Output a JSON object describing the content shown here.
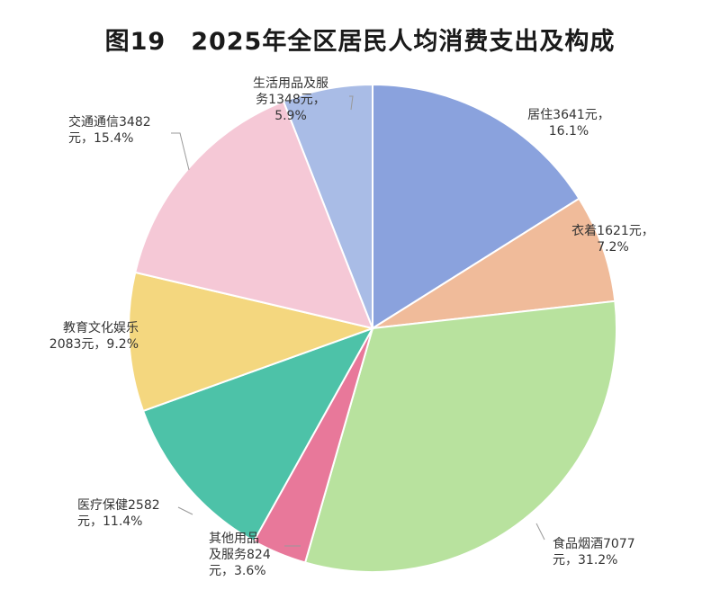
{
  "chart_data": {
    "type": "pie",
    "title": "图19　2025年全区居民人均消费支出及构成",
    "slices": [
      {
        "name": "居住",
        "value": 3641,
        "percent": 16.1,
        "color": "#8aa2dd",
        "label_lines": [
          "居住3641元，",
          "16.1%"
        ]
      },
      {
        "name": "衣着",
        "value": 1621,
        "percent": 7.2,
        "color": "#f0bb9a",
        "label_lines": [
          "衣着1621元，",
          "7.2%"
        ]
      },
      {
        "name": "食品烟酒",
        "value": 7077,
        "percent": 31.2,
        "color": "#b8e29e",
        "label_lines": [
          "食品烟酒7077",
          "元，31.2%"
        ]
      },
      {
        "name": "其他用品及服务",
        "value": 824,
        "percent": 3.6,
        "color": "#e8789a",
        "label_lines": [
          "其他用品",
          "及服务824",
          "元，3.6%"
        ]
      },
      {
        "name": "医疗保健",
        "value": 2582,
        "percent": 11.4,
        "color": "#4dc2a8",
        "label_lines": [
          "医疗保健2582",
          "元，11.4%"
        ]
      },
      {
        "name": "教育文化娱乐",
        "value": 2083,
        "percent": 9.2,
        "color": "#f4d77f",
        "label_lines": [
          "教育文化娱乐",
          "2083元，9.2%"
        ]
      },
      {
        "name": "交通通信",
        "value": 3482,
        "percent": 15.4,
        "color": "#f5c8d6",
        "label_lines": [
          "交通通信3482",
          "元，15.4%"
        ]
      },
      {
        "name": "生活用品及服务",
        "value": 1348,
        "percent": 5.9,
        "color": "#a9bce6",
        "label_lines": [
          "生活用品及服",
          "务1348元，",
          "5.9%"
        ]
      }
    ]
  }
}
